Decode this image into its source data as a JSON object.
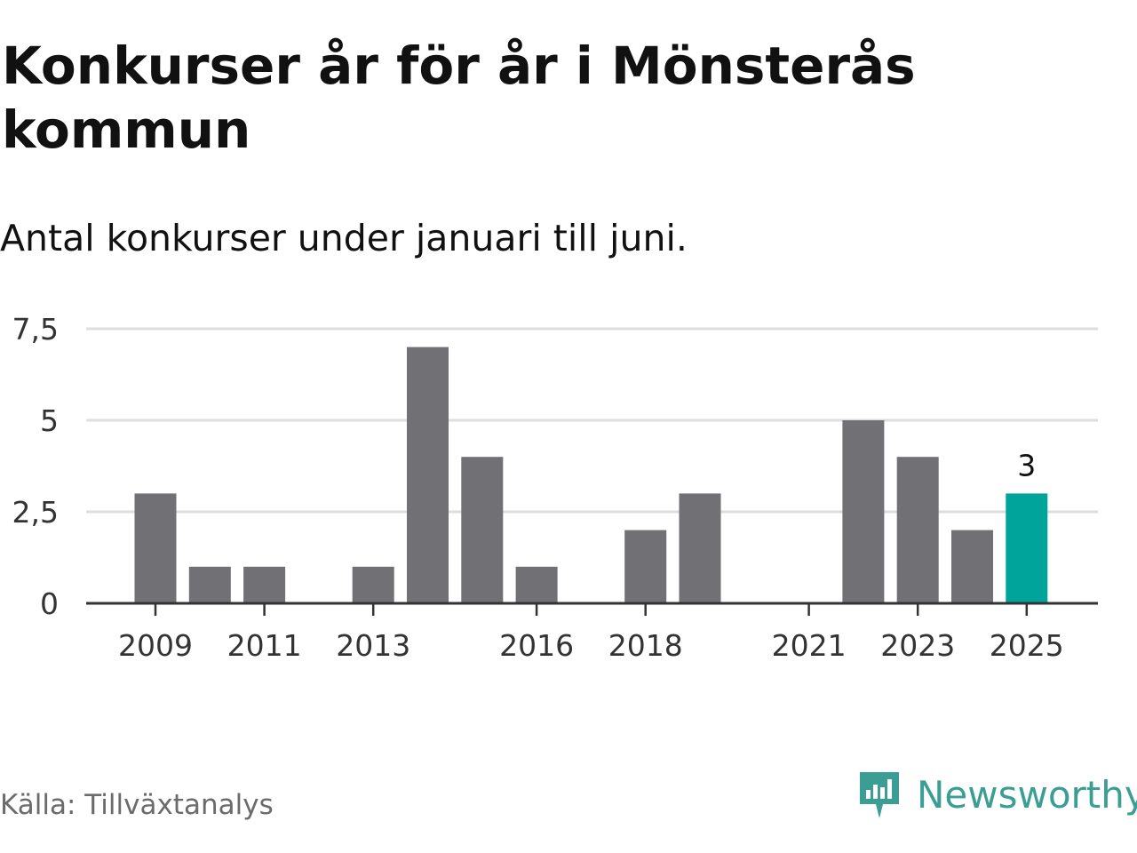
{
  "colors": {
    "bar": "#707075",
    "highlight": "#00a49a",
    "grid": "#dedede",
    "axis": "#333333",
    "brand": "#3a9e94"
  },
  "source": {
    "text": "Källa: Tillväxtanalys"
  },
  "brand": {
    "name": "Newsworthy",
    "logo_icon": "newsworthy-logo-icon"
  },
  "chart_data": {
    "type": "bar",
    "title": "Konkurser år för år i Mönsterås kommun",
    "subtitle": "Antal konkurser under januari till juni.",
    "categories": [
      "2009",
      "2010",
      "2011",
      "2012",
      "2013",
      "2014",
      "2015",
      "2016",
      "2017",
      "2018",
      "2019",
      "2020",
      "2021",
      "2022",
      "2023",
      "2024",
      "2025"
    ],
    "values": [
      3,
      1,
      1,
      0,
      1,
      7,
      4,
      1,
      0,
      2,
      3,
      0,
      0,
      5,
      4,
      2,
      3
    ],
    "highlight_category": "2025",
    "data_labels": [
      {
        "category": "2025",
        "text": "3"
      }
    ],
    "x_tick_labels": [
      "2009",
      "2011",
      "2013",
      "2016",
      "2018",
      "2021",
      "2023",
      "2025"
    ],
    "y_ticks": [
      0,
      2.5,
      5,
      7.5
    ],
    "y_tick_labels": [
      "0",
      "2,5",
      "5",
      "7,5"
    ],
    "ylim": [
      0,
      7.5
    ],
    "xlabel": "",
    "ylabel": "",
    "grid": true,
    "legend": "none"
  }
}
